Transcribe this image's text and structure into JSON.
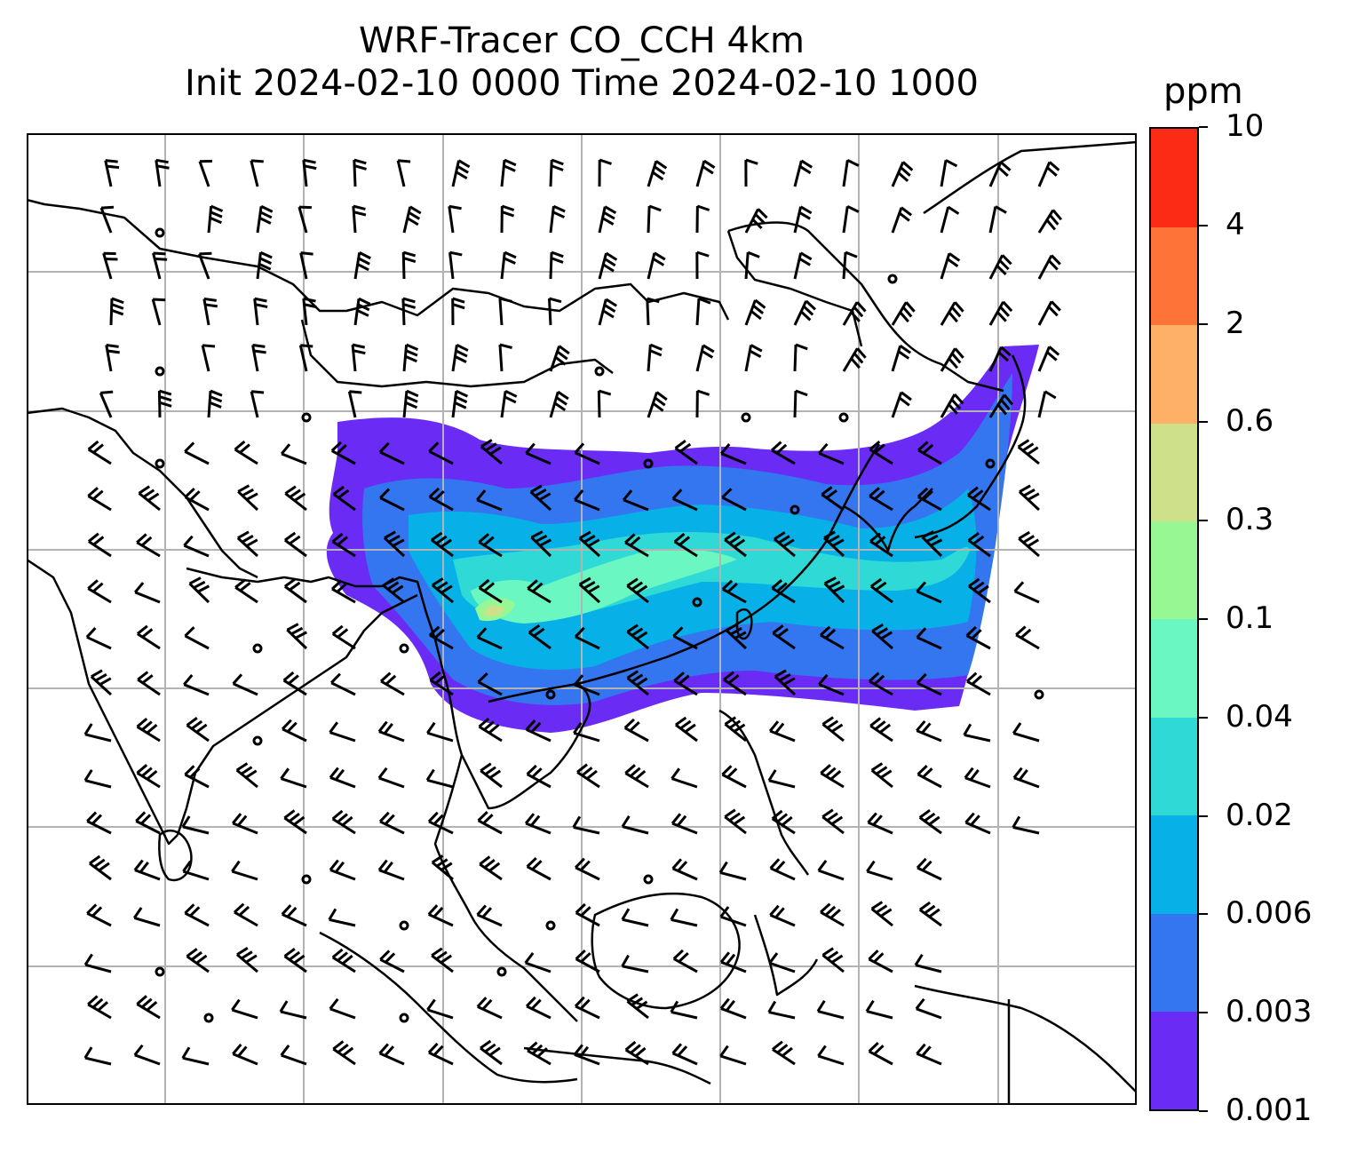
{
  "title": {
    "line1": "WRF-Tracer CO_CCH 4km",
    "line2": "Init 2024-02-10 0000 Time 2024-02-10 1000"
  },
  "colorbar": {
    "unit": "ppm",
    "levels": [
      "0.001",
      "0.003",
      "0.006",
      "0.02",
      "0.04",
      "0.1",
      "0.3",
      "0.6",
      "2",
      "4",
      "10"
    ],
    "colors": [
      "#6a2bf5",
      "#3475f0",
      "#07b1e8",
      "#2ed9d6",
      "#6af7c2",
      "#97f793",
      "#cfe08a",
      "#fdb066",
      "#fd7338",
      "#fb2b16"
    ]
  },
  "map": {
    "projection": "lat-lon",
    "gridlines": true,
    "coastlines_color": "#000000",
    "grid_color": "#b3b3b3",
    "overlay": "wind-barbs"
  }
}
